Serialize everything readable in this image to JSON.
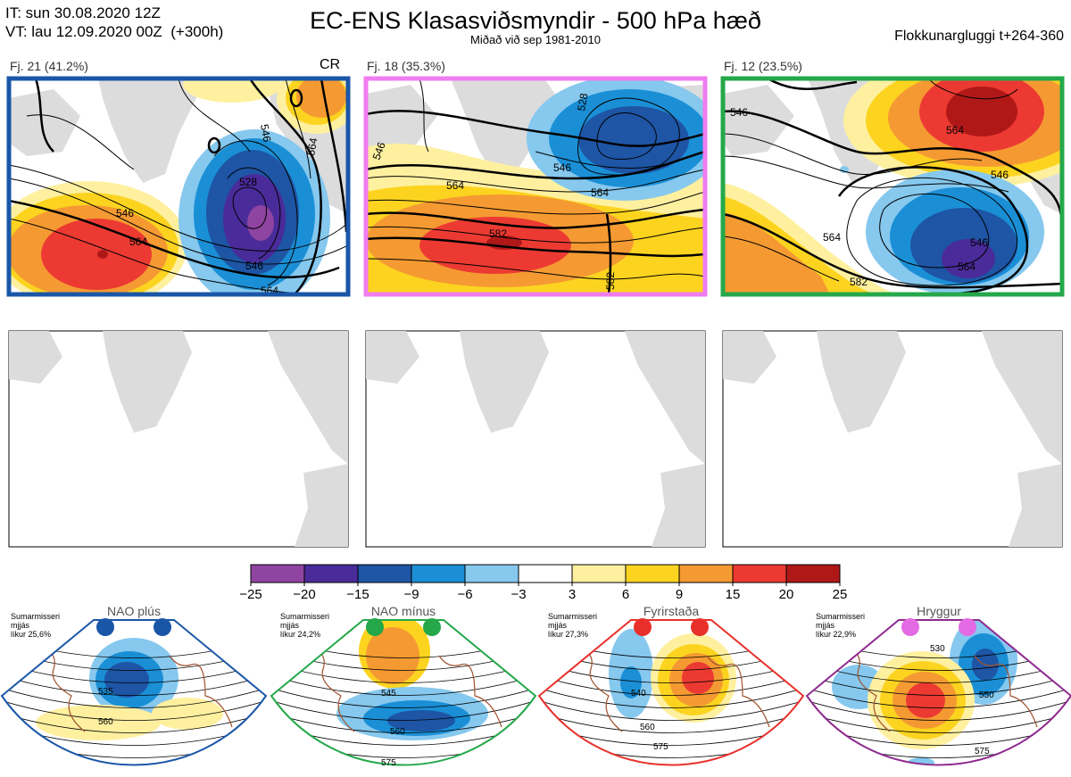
{
  "header": {
    "it_line": "IT: sun 30.08.2020 12Z",
    "vt_line": "VT: lau 12.09.2020 00Z  (+300h)",
    "title": "EC-ENS Klasasviðsmyndir - 500 hPa hæð",
    "subtitle": "Miðað við sep 1981-2010",
    "window": "Flokkunargluggi t+264-360"
  },
  "colors": {
    "scale": [
      "#8e44a0",
      "#4a2b9a",
      "#1e55a5",
      "#1a8fd6",
      "#86c8ee",
      "#ffffff",
      "#fff0a0",
      "#fcd420",
      "#f59a32",
      "#ec3a32",
      "#b01818"
    ],
    "land": "#dcdcdc",
    "coast_bottom": "#a0522d"
  },
  "panels": [
    {
      "label": "Fj. 21 (41.2%)",
      "frame_color": "#1a56a8",
      "corner_text": "CR",
      "contour_labels": [
        "546",
        "564",
        "528",
        "546",
        "564",
        "546",
        "564"
      ]
    },
    {
      "label": "Fj. 18 (35.3%)",
      "frame_color": "#f07cf0",
      "corner_text": "",
      "contour_labels": [
        "528",
        "546",
        "564",
        "546",
        "564",
        "582",
        "582"
      ]
    },
    {
      "label": "Fj. 12 (23.5%)",
      "frame_color": "#24a84a",
      "corner_text": "",
      "contour_labels": [
        "546",
        "564",
        "546",
        "564",
        "564",
        "546",
        "582"
      ]
    }
  ],
  "colorbar": {
    "ticks": [
      "−25",
      "−20",
      "−15",
      "−9",
      "−6",
      "−3",
      "3",
      "6",
      "9",
      "15",
      "20",
      "25"
    ]
  },
  "regimes": [
    {
      "name": "NAO plús",
      "note": [
        "Sumarmisseri",
        "mjjás",
        "líkur 25,6%"
      ],
      "frame_color": "#1a56a8",
      "dot_color": "#1a56a8",
      "contour_labels": [
        "535",
        "560"
      ]
    },
    {
      "name": "NAO mínus",
      "note": [
        "Sumarmisseri",
        "mjjás",
        "líkur 24,2%"
      ],
      "frame_color": "#24a84a",
      "dot_color": "#24a84a",
      "contour_labels": [
        "545",
        "560",
        "575"
      ]
    },
    {
      "name": "Fyrirstaða",
      "note": [
        "Sumarmisseri",
        "mjjás",
        "líkur 27,3%"
      ],
      "frame_color": "#e8302a",
      "dot_color": "#e8302a",
      "contour_labels": [
        "540",
        "560",
        "575"
      ]
    },
    {
      "name": "Hryggur",
      "note": [
        "Sumarmisseri",
        "mjjás",
        "líkur 22,9%"
      ],
      "frame_color": "#8e2a8e",
      "dot_color": "#e36ae3",
      "contour_labels": [
        "530",
        "550",
        "575"
      ]
    }
  ]
}
